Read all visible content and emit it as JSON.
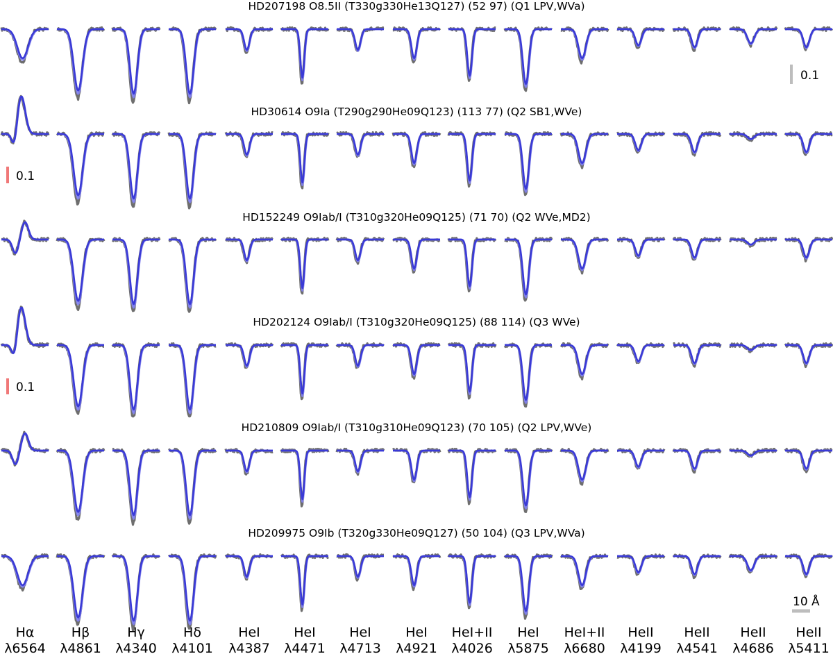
{
  "chart_data": {
    "type": "line",
    "colors": {
      "observed": "#6e6e6e",
      "model_fit": "#3a3ad6",
      "model_alt": "#7f7ff0",
      "scale_gray": "#bdbdbd",
      "scale_red": "#f07878"
    },
    "line_labels": [
      {
        "line1": "Hα",
        "line2": "λ6564"
      },
      {
        "line1": "Hβ",
        "line2": "λ4861"
      },
      {
        "line1": "Hγ",
        "line2": "λ4340"
      },
      {
        "line1": "Hδ",
        "line2": "λ4101"
      },
      {
        "line1": "HeI",
        "line2": "λ4387"
      },
      {
        "line1": "HeI",
        "line2": "λ4471"
      },
      {
        "line1": "HeI",
        "line2": "λ4713"
      },
      {
        "line1": "HeI",
        "line2": "λ4921"
      },
      {
        "line1": "HeI+II",
        "line2": "λ4026"
      },
      {
        "line1": "HeI",
        "line2": "λ5875"
      },
      {
        "line1": "HeI+II",
        "line2": "λ6680"
      },
      {
        "line1": "HeII",
        "line2": "λ4199"
      },
      {
        "line1": "HeII",
        "line2": "λ4541"
      },
      {
        "line1": "HeII",
        "line2": "λ4686"
      },
      {
        "line1": "HeII",
        "line2": "λ5411"
      }
    ],
    "line_depths": [
      0.45,
      0.95,
      1.0,
      1.0,
      0.32,
      0.75,
      0.32,
      0.45,
      0.72,
      0.85,
      0.45,
      0.25,
      0.28,
      0.22,
      0.28
    ],
    "line_widths": [
      0.16,
      0.13,
      0.11,
      0.11,
      0.08,
      0.06,
      0.08,
      0.08,
      0.07,
      0.09,
      0.11,
      0.09,
      0.09,
      0.1,
      0.09
    ],
    "stars": [
      {
        "title": "HD207198 O8.5II (T330g330He13Q127) (52 97) (Q1 LPV,WVa)",
        "halpha": "absorption",
        "he4686": "absorption",
        "scale_bar": "0.1"
      },
      {
        "title": "HD30614 O9Ia (T290g290He09Q123) (113 77) (Q2 SB1,WVe)",
        "halpha": "emission",
        "he4686": "weak",
        "scale_bar": "0.1"
      },
      {
        "title": "HD152249 O9Iab/I (T310g320He09Q125) (71 70) (Q2 WVe,MD2)",
        "halpha": "pcygni",
        "he4686": "weak",
        "scale_bar": ""
      },
      {
        "title": "HD202124 O9Iab/I (T310g320He09Q125) (88 114) (Q3 WVe)",
        "halpha": "emission",
        "he4686": "weak",
        "scale_bar": "0.1"
      },
      {
        "title": "HD210809 O9Iab/I (T310g310He09Q123) (70 105) (Q2 LPV,WVe)",
        "halpha": "pcygni",
        "he4686": "weak",
        "scale_bar": ""
      },
      {
        "title": "HD209975 O9Ib (T320g330He09Q127) (50 104) (Q3 LPV,WVa)",
        "halpha": "absorption",
        "he4686": "absorption",
        "scale_bar": ""
      }
    ],
    "flux_scale_label": "0.1",
    "wavelength_scale_label": "10 Å"
  }
}
